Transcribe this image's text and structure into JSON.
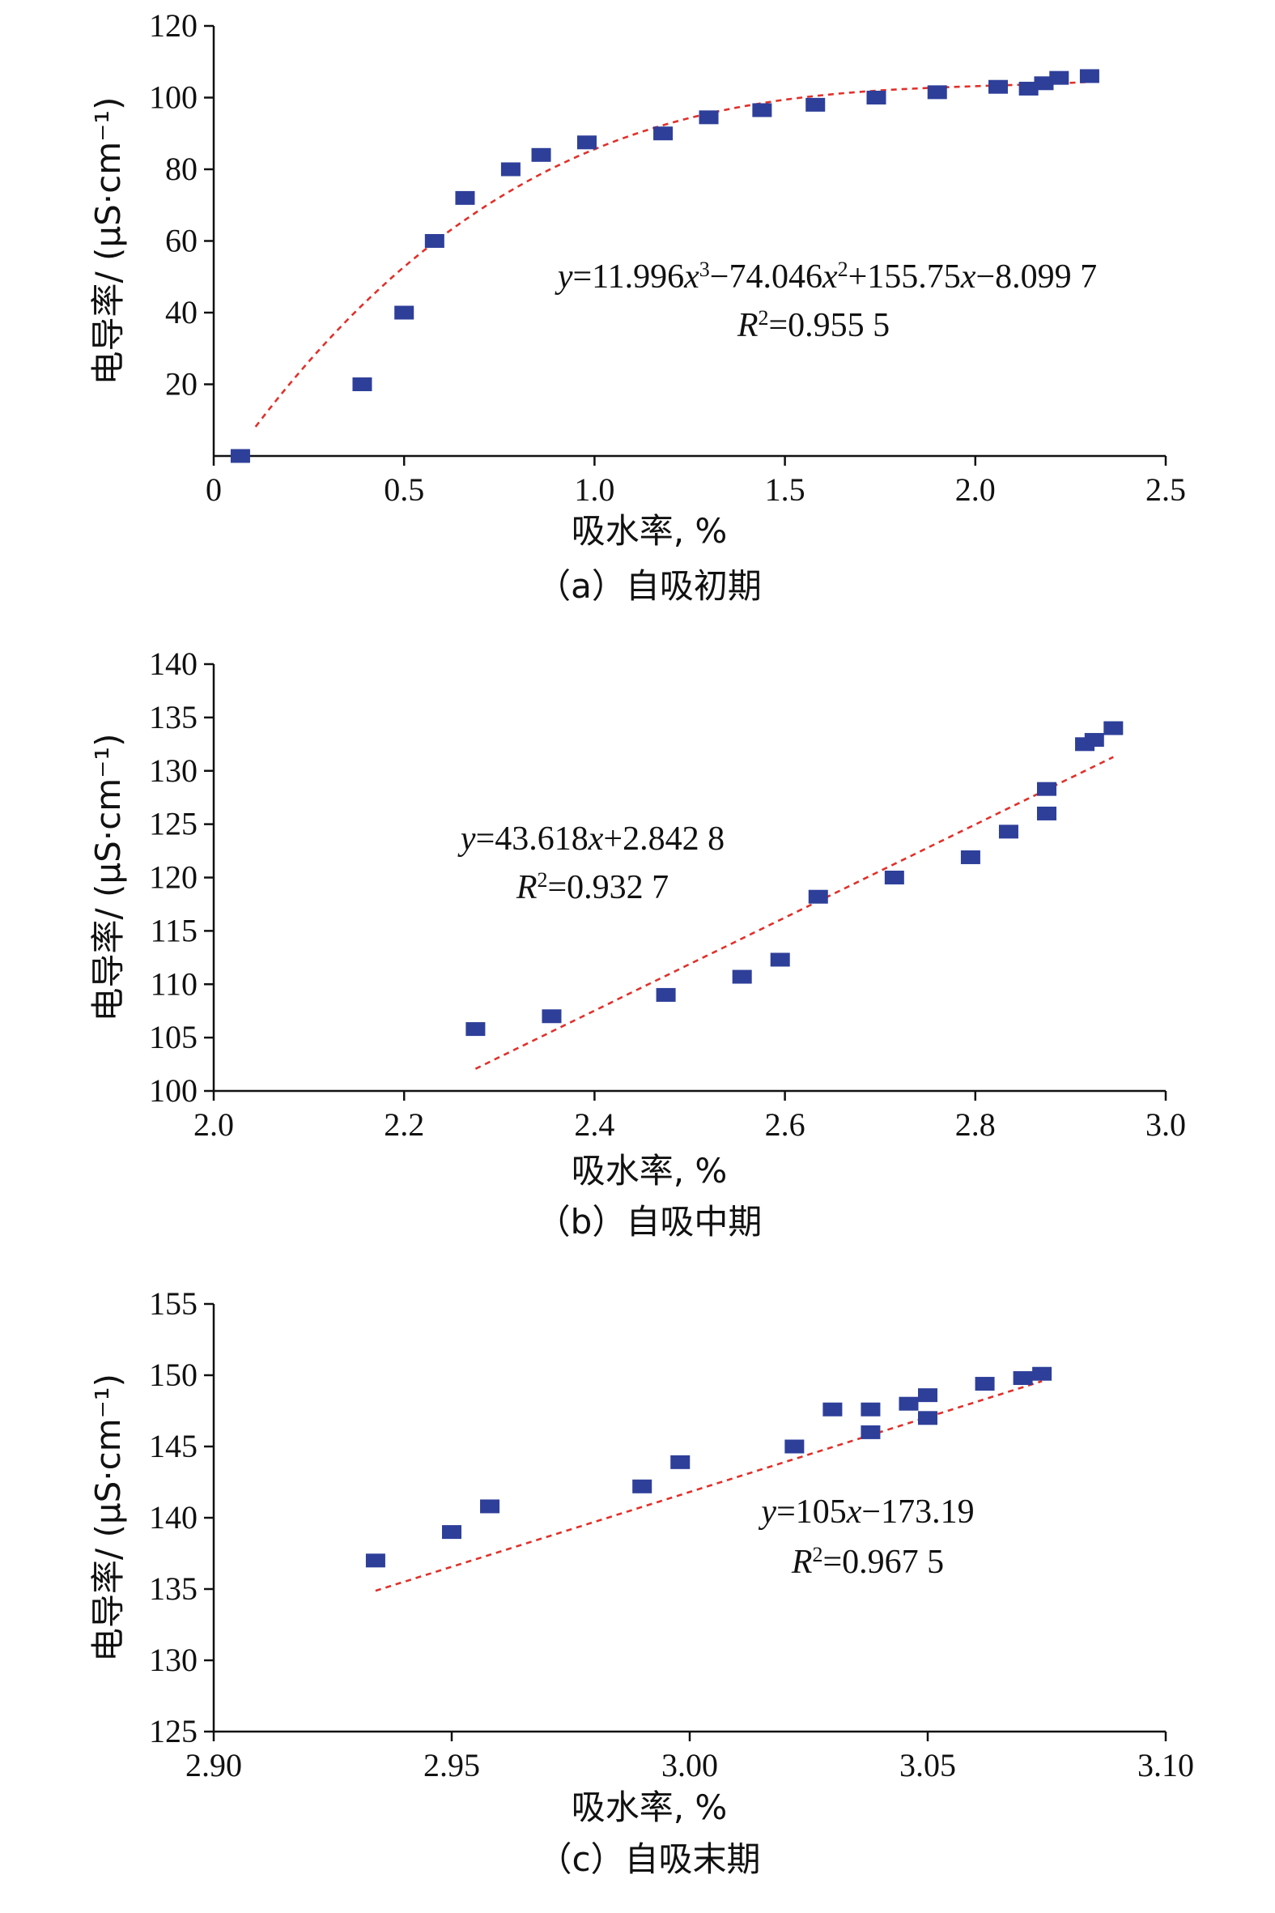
{
  "colors": {
    "marker": "#2e3f9a",
    "trendline": "#e0312b",
    "axis": "#111111"
  },
  "chart_data": [
    {
      "type": "scatter",
      "caption": "（a）自吸初期",
      "xlabel": "吸水率, %",
      "ylabel": "电导率/ (μS·cm⁻¹)",
      "xlim": [
        0,
        2.5
      ],
      "ylim": [
        0,
        120
      ],
      "xticks": [
        0,
        0.5,
        1.0,
        1.5,
        2.0,
        2.5
      ],
      "xtick_labels": [
        "0",
        "0.5",
        "1.0",
        "1.5",
        "2.0",
        "2.5"
      ],
      "yticks": [
        20,
        40,
        60,
        80,
        100,
        120
      ],
      "ytick_labels": [
        "20",
        "40",
        "60",
        "80",
        "100",
        "120"
      ],
      "points": [
        {
          "x": 0.07,
          "y": 0.0
        },
        {
          "x": 0.39,
          "y": 20.0
        },
        {
          "x": 0.5,
          "y": 40.0
        },
        {
          "x": 0.58,
          "y": 60.0
        },
        {
          "x": 0.66,
          "y": 72.0
        },
        {
          "x": 0.78,
          "y": 80.0
        },
        {
          "x": 0.86,
          "y": 84.0
        },
        {
          "x": 0.98,
          "y": 87.5
        },
        {
          "x": 1.18,
          "y": 90.0
        },
        {
          "x": 1.3,
          "y": 94.5
        },
        {
          "x": 1.44,
          "y": 96.5
        },
        {
          "x": 1.58,
          "y": 98.0
        },
        {
          "x": 1.74,
          "y": 100.0
        },
        {
          "x": 1.9,
          "y": 101.5
        },
        {
          "x": 2.06,
          "y": 103.0
        },
        {
          "x": 2.14,
          "y": 102.5
        },
        {
          "x": 2.18,
          "y": 104.0
        },
        {
          "x": 2.22,
          "y": 105.5
        },
        {
          "x": 2.3,
          "y": 106.0
        }
      ],
      "fit": {
        "kind": "poly",
        "coeffs": [
          -8.0997,
          155.75,
          -74.046,
          11.996
        ],
        "x_range": [
          0.11,
          2.3
        ]
      },
      "equation": {
        "line1": [
          {
            "t": "y",
            "s": "i"
          },
          {
            "t": "=11.996",
            "s": "n"
          },
          {
            "t": "x",
            "s": "i"
          },
          {
            "t": "3",
            "s": "sup"
          },
          {
            "t": "−74.046",
            "s": "n"
          },
          {
            "t": "x",
            "s": "i"
          },
          {
            "t": "2",
            "s": "sup"
          },
          {
            "t": "+155.75",
            "s": "n"
          },
          {
            "t": "x",
            "s": "i"
          },
          {
            "t": "−8.099 7",
            "s": "n"
          }
        ],
        "line2": [
          {
            "t": "R",
            "s": "i"
          },
          {
            "t": "2",
            "s": "sup"
          },
          {
            "t": "=0.955 5",
            "s": "n"
          }
        ]
      }
    },
    {
      "type": "scatter",
      "caption": "（b）自吸中期",
      "xlabel": "吸水率, %",
      "ylabel": "电导率/ (μS·cm⁻¹)",
      "xlim": [
        2.0,
        3.0
      ],
      "ylim": [
        100,
        140
      ],
      "xticks": [
        2.0,
        2.2,
        2.4,
        2.6,
        2.8,
        3.0
      ],
      "xtick_labels": [
        "2.0",
        "2.2",
        "2.4",
        "2.6",
        "2.8",
        "3.0"
      ],
      "yticks": [
        100,
        105,
        110,
        115,
        120,
        125,
        130,
        135,
        140
      ],
      "ytick_labels": [
        "100",
        "105",
        "110",
        "115",
        "120",
        "125",
        "130",
        "135",
        "140"
      ],
      "points": [
        {
          "x": 2.275,
          "y": 105.8
        },
        {
          "x": 2.355,
          "y": 107.0
        },
        {
          "x": 2.475,
          "y": 109.0
        },
        {
          "x": 2.555,
          "y": 110.7
        },
        {
          "x": 2.595,
          "y": 112.3
        },
        {
          "x": 2.635,
          "y": 118.2
        },
        {
          "x": 2.715,
          "y": 120.0
        },
        {
          "x": 2.795,
          "y": 121.9
        },
        {
          "x": 2.835,
          "y": 124.3
        },
        {
          "x": 2.875,
          "y": 126.0
        },
        {
          "x": 2.875,
          "y": 128.3
        },
        {
          "x": 2.915,
          "y": 132.5
        },
        {
          "x": 2.925,
          "y": 132.9
        },
        {
          "x": 2.945,
          "y": 134.0
        }
      ],
      "fit": {
        "kind": "poly",
        "coeffs": [
          2.8428,
          43.618
        ],
        "x_range": [
          2.275,
          2.945
        ]
      },
      "equation": {
        "line1": [
          {
            "t": "y",
            "s": "i"
          },
          {
            "t": "=43.618",
            "s": "n"
          },
          {
            "t": "x",
            "s": "i"
          },
          {
            "t": "+2.842 8",
            "s": "n"
          }
        ],
        "line2": [
          {
            "t": "R",
            "s": "i"
          },
          {
            "t": "2",
            "s": "sup"
          },
          {
            "t": "=0.932 7",
            "s": "n"
          }
        ]
      }
    },
    {
      "type": "scatter",
      "caption": "（c）自吸末期",
      "xlabel": "吸水率, %",
      "ylabel": "电导率/ (μS·cm⁻¹)",
      "xlim": [
        2.9,
        3.1
      ],
      "ylim": [
        125,
        155
      ],
      "xticks": [
        2.9,
        2.95,
        3.0,
        3.05,
        3.1
      ],
      "xtick_labels": [
        "2.90",
        "2.95",
        "3.00",
        "3.05",
        "3.10"
      ],
      "yticks": [
        125,
        130,
        135,
        140,
        145,
        150,
        155
      ],
      "ytick_labels": [
        "125",
        "130",
        "135",
        "140",
        "145",
        "150",
        "155"
      ],
      "points": [
        {
          "x": 2.934,
          "y": 137.0
        },
        {
          "x": 2.95,
          "y": 139.0
        },
        {
          "x": 2.958,
          "y": 140.8
        },
        {
          "x": 2.99,
          "y": 142.2
        },
        {
          "x": 2.998,
          "y": 143.9
        },
        {
          "x": 3.022,
          "y": 145.0
        },
        {
          "x": 3.03,
          "y": 147.6
        },
        {
          "x": 3.038,
          "y": 146.0
        },
        {
          "x": 3.038,
          "y": 147.6
        },
        {
          "x": 3.046,
          "y": 148.0
        },
        {
          "x": 3.05,
          "y": 147.0
        },
        {
          "x": 3.05,
          "y": 148.6
        },
        {
          "x": 3.062,
          "y": 149.4
        },
        {
          "x": 3.07,
          "y": 149.8
        },
        {
          "x": 3.074,
          "y": 150.1
        }
      ],
      "fit": {
        "kind": "poly",
        "coeffs": [
          -173.19,
          105
        ],
        "x_range": [
          2.934,
          3.074
        ]
      },
      "equation": {
        "line1": [
          {
            "t": "y",
            "s": "i"
          },
          {
            "t": "=105",
            "s": "n"
          },
          {
            "t": "x",
            "s": "i"
          },
          {
            "t": "−173.19",
            "s": "n"
          }
        ],
        "line2": [
          {
            "t": "R",
            "s": "i"
          },
          {
            "t": "2",
            "s": "sup"
          },
          {
            "t": "=0.967 5",
            "s": "n"
          }
        ]
      }
    }
  ]
}
